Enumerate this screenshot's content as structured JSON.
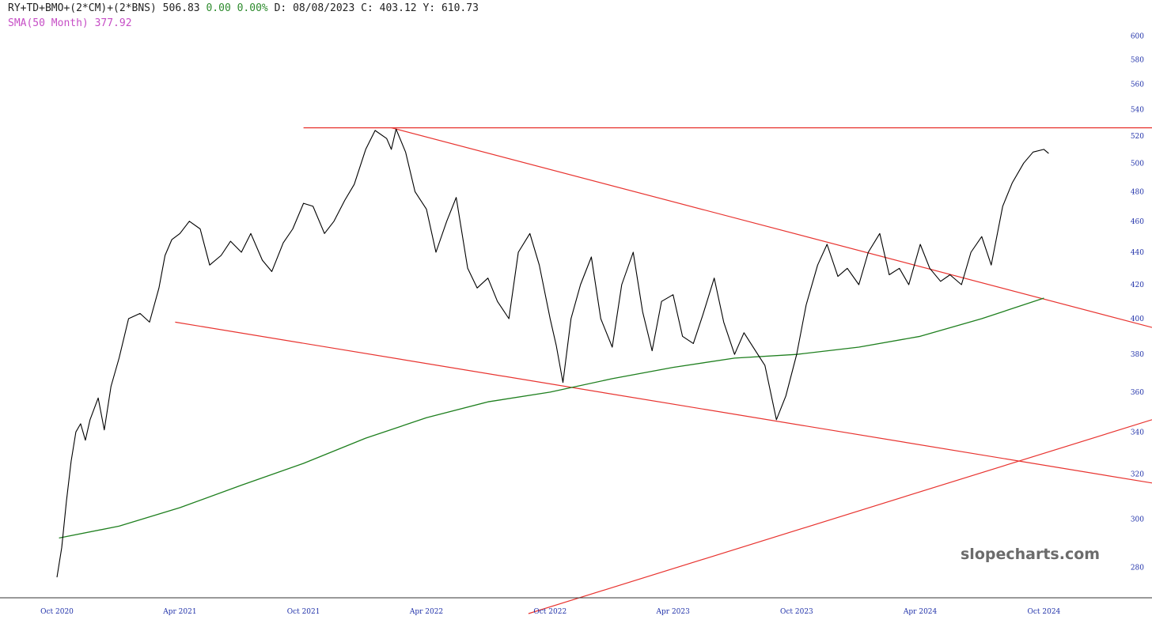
{
  "header": {
    "symbol": "RY+TD+BMO+(2*CM)+(2*BNS)",
    "last": "506.83",
    "change": "0.00",
    "change_pct": "0.00%",
    "d_label": "D:",
    "date": "08/08/2023",
    "c_label": "C:",
    "c_value": "403.12",
    "y_label": "Y:",
    "y_value": "610.73",
    "sma_label": "SMA(50 Month)",
    "sma_value": "377.92"
  },
  "watermark": "slopecharts.com",
  "colors": {
    "price": "#000000",
    "sma": "#1e7f1e",
    "trendline": "#e8332f",
    "sma_label": "#c64ec6",
    "change": "#2e8b2e",
    "axis_text": "#2233aa"
  },
  "chart_data": {
    "type": "line",
    "title": "RY+TD+BMO+(2*CM)+(2*BNS)",
    "xlabel": "",
    "ylabel": "",
    "y_scale": "log",
    "ylim": [
      268,
      610.73
    ],
    "xlim": [
      "2020-10-01",
      "2025-03-10"
    ],
    "grid": false,
    "y_ticks": [
      280,
      300,
      320,
      340,
      360,
      380,
      400,
      420,
      440,
      460,
      480,
      500,
      520,
      540,
      560,
      580,
      600
    ],
    "x_ticks": [
      "Oct 2020",
      "Apr 2021",
      "Oct 2021",
      "Apr 2022",
      "Oct 2022",
      "Apr 2023",
      "Oct 2023",
      "Apr 2024",
      "Oct 2024"
    ],
    "series": [
      {
        "type": "line",
        "x": [
          "2020-10-01",
          "2020-10-08",
          "2020-10-15",
          "2020-10-22",
          "2020-10-29",
          "2020-11-05",
          "2020-11-12",
          "2020-11-19",
          "2020-12-01",
          "2020-12-10",
          "2020-12-20",
          "2021-01-01",
          "2021-01-15",
          "2021-02-01",
          "2021-02-15",
          "2021-03-01",
          "2021-03-10",
          "2021-03-20",
          "2021-04-01",
          "2021-04-15",
          "2021-05-01",
          "2021-05-15",
          "2021-06-01",
          "2021-06-15",
          "2021-07-01",
          "2021-07-15",
          "2021-08-01",
          "2021-08-15",
          "2021-09-01",
          "2021-09-15",
          "2021-10-01",
          "2021-10-15",
          "2021-11-01",
          "2021-11-15",
          "2021-12-01",
          "2021-12-15",
          "2022-01-01",
          "2022-01-15",
          "2022-02-01",
          "2022-02-08",
          "2022-02-15",
          "2022-03-01",
          "2022-03-15",
          "2022-04-01",
          "2022-04-15",
          "2022-05-01",
          "2022-05-15",
          "2022-06-01",
          "2022-06-15",
          "2022-07-01",
          "2022-07-15",
          "2022-08-01",
          "2022-08-15",
          "2022-09-01",
          "2022-09-15",
          "2022-10-01",
          "2022-10-10",
          "2022-10-20",
          "2022-11-01",
          "2022-11-15",
          "2022-12-01",
          "2022-12-15",
          "2023-01-01",
          "2023-01-15",
          "2023-02-01",
          "2023-02-15",
          "2023-03-01",
          "2023-03-15",
          "2023-04-01",
          "2023-04-15",
          "2023-05-01",
          "2023-05-15",
          "2023-06-01",
          "2023-06-15",
          "2023-07-01",
          "2023-07-15",
          "2023-08-01",
          "2023-08-15",
          "2023-09-01",
          "2023-09-15",
          "2023-10-01",
          "2023-10-15",
          "2023-11-01",
          "2023-11-15",
          "2023-12-01",
          "2023-12-15",
          "2024-01-01",
          "2024-01-15",
          "2024-02-01",
          "2024-02-15",
          "2024-03-01",
          "2024-03-15",
          "2024-04-01",
          "2024-04-15",
          "2024-05-01",
          "2024-05-15",
          "2024-06-01",
          "2024-06-15",
          "2024-07-01",
          "2024-07-15",
          "2024-08-01",
          "2024-08-15",
          "2024-09-01",
          "2024-09-15",
          "2024-10-01",
          "2024-10-08"
        ],
        "values": [
          276,
          288,
          308,
          326,
          340,
          344,
          336,
          346,
          357,
          341,
          363,
          378,
          400,
          403,
          398,
          418,
          438,
          448,
          452,
          460,
          455,
          432,
          438,
          447,
          440,
          452,
          435,
          428,
          446,
          455,
          472,
          470,
          452,
          460,
          474,
          485,
          510,
          524,
          518,
          510,
          525,
          508,
          480,
          468,
          440,
          460,
          476,
          430,
          418,
          424,
          410,
          400,
          440,
          452,
          432,
          400,
          385,
          365,
          400,
          420,
          437,
          400,
          384,
          420,
          440,
          404,
          382,
          410,
          414,
          390,
          386,
          402,
          424,
          398,
          380,
          392,
          382,
          374,
          346,
          358,
          380,
          408,
          432,
          445,
          425,
          430,
          420,
          440,
          452,
          426,
          430,
          420,
          445,
          430,
          422,
          426,
          420,
          440,
          450,
          432,
          470,
          486,
          500,
          508,
          510,
          507
        ]
      },
      {
        "name": "SMA(50 Month)",
        "type": "line",
        "x": [
          "2020-10-04",
          "2021-01-01",
          "2021-04-01",
          "2021-07-01",
          "2021-10-01",
          "2022-01-01",
          "2022-04-01",
          "2022-07-01",
          "2022-10-01",
          "2023-01-01",
          "2023-04-01",
          "2023-07-01",
          "2023-10-01",
          "2024-01-01",
          "2024-04-01",
          "2024-07-01",
          "2024-10-01"
        ],
        "values": [
          292,
          297,
          305,
          315,
          325,
          337,
          347,
          355,
          360,
          367,
          373,
          378,
          380,
          384,
          390,
          400,
          412
        ]
      }
    ],
    "trendlines": [
      {
        "x": [
          "2021-10-01",
          "2025-03-10"
        ],
        "values": [
          526,
          526
        ]
      },
      {
        "x": [
          "2022-02-08",
          "2025-03-10"
        ],
        "values": [
          526,
          395
        ]
      },
      {
        "x": [
          "2021-03-25",
          "2025-03-10"
        ],
        "values": [
          398,
          316
        ]
      },
      {
        "x": [
          "2022-08-30",
          "2025-03-10"
        ],
        "values": [
          262,
          346
        ]
      }
    ]
  }
}
